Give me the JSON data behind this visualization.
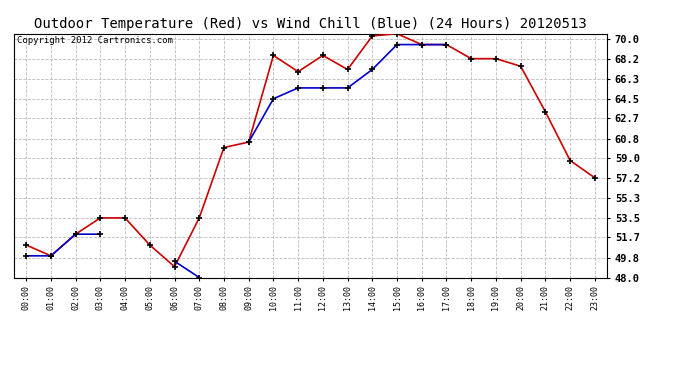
{
  "title": "Outdoor Temperature (Red) vs Wind Chill (Blue) (24 Hours) 20120513",
  "copyright": "Copyright 2012 Cartronics.com",
  "hours": [
    0,
    1,
    2,
    3,
    4,
    5,
    6,
    7,
    8,
    9,
    10,
    11,
    12,
    13,
    14,
    15,
    16,
    17,
    18,
    19,
    20,
    21,
    22,
    23
  ],
  "temp_red": [
    51.0,
    50.0,
    52.0,
    53.5,
    53.5,
    51.0,
    49.0,
    53.5,
    60.0,
    60.5,
    68.5,
    67.0,
    68.5,
    67.2,
    70.3,
    70.5,
    69.5,
    69.5,
    68.2,
    68.2,
    67.5,
    63.3,
    58.8,
    57.2
  ],
  "wind_blue": [
    50.0,
    50.0,
    52.0,
    52.0,
    null,
    null,
    49.5,
    48.0,
    null,
    60.5,
    64.5,
    65.5,
    65.5,
    65.5,
    67.2,
    69.5,
    69.5,
    69.5,
    null,
    null,
    null,
    null,
    null,
    null
  ],
  "ylim": [
    48.0,
    70.5
  ],
  "yticks": [
    48.0,
    49.8,
    51.7,
    53.5,
    55.3,
    57.2,
    59.0,
    60.8,
    62.7,
    64.5,
    66.3,
    68.2,
    70.0
  ],
  "bg_color": "#ffffff",
  "grid_color": "#bbbbbb",
  "red_color": "#cc0000",
  "blue_color": "#0000cc",
  "title_fontsize": 10,
  "copyright_fontsize": 6.5
}
